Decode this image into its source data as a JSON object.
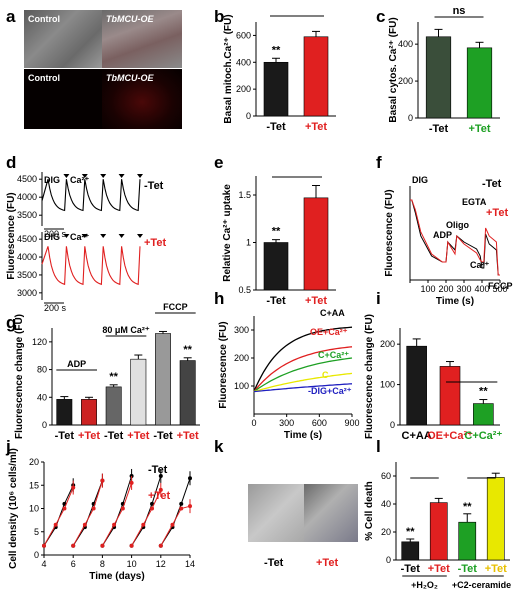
{
  "panel_letters": [
    "a",
    "b",
    "c",
    "d",
    "e",
    "f",
    "g",
    "h",
    "i",
    "j",
    "k",
    "l"
  ],
  "panel_a": {
    "labels": [
      "Control",
      "TbMCU-OE",
      "Control",
      "TbMCU-OE"
    ]
  },
  "panel_k": {
    "labels": [
      "-Tet",
      "+Tet"
    ]
  },
  "chart_data": [
    {
      "panel": "b",
      "type": "bar",
      "categories": [
        "-Tet",
        "+Tet"
      ],
      "values": [
        400,
        590
      ],
      "errors": [
        30,
        40
      ],
      "colors": [
        "#1a1a1a",
        "#e02020"
      ],
      "ylabel": "Basal mitoch.Ca²⁺ (FU)",
      "ylim": [
        0,
        700
      ],
      "yticks": [
        0,
        200,
        400,
        600
      ],
      "annotations": [
        "**"
      ]
    },
    {
      "panel": "c",
      "type": "bar",
      "categories": [
        "-Tet",
        "+Tet"
      ],
      "values": [
        440,
        380
      ],
      "errors": [
        40,
        30
      ],
      "colors": [
        "#3a4e3a",
        "#1ea024"
      ],
      "ylabel": "Basal cytos. Ca²⁺ (FU)",
      "ylim": [
        0,
        520
      ],
      "yticks": [
        0,
        200,
        400
      ],
      "annotations": [
        "ns"
      ]
    },
    {
      "panel": "d",
      "type": "line",
      "ylabel": "Fluorescence (FU)",
      "traces": [
        {
          "name": "-Tet",
          "color": "#000",
          "ylim": [
            3200,
            4700
          ],
          "yticks": [
            3500,
            4000,
            4500
          ],
          "scale_label": "200 s",
          "labels": [
            "DIG",
            "Ca²⁺"
          ]
        },
        {
          "name": "+Tet",
          "color": "#e02020",
          "ylim": [
            2800,
            4700
          ],
          "yticks": [
            3000,
            3500,
            4000,
            4500
          ],
          "scale_label": "200 s",
          "labels": [
            "DIG",
            "Ca²⁺"
          ]
        }
      ]
    },
    {
      "panel": "e",
      "type": "bar",
      "categories": [
        "-Tet",
        "+Tet"
      ],
      "values": [
        1.0,
        1.47
      ],
      "errors": [
        0.03,
        0.13
      ],
      "colors": [
        "#1a1a1a",
        "#e02020"
      ],
      "ylabel": "Relative Ca²⁺ uptake",
      "ylim": [
        0.5,
        1.7
      ],
      "yticks": [
        0.5,
        1.0,
        1.5
      ],
      "annotations": [
        "**"
      ]
    },
    {
      "panel": "f",
      "type": "line",
      "xlabel": "Time (s)",
      "ylabel": "Fluorescence (FU)",
      "xlim": [
        0,
        500
      ],
      "xticks": [
        0,
        100,
        200,
        300,
        400,
        500
      ],
      "series": [
        {
          "name": "-Tet",
          "color": "#000"
        },
        {
          "name": "+Tet",
          "color": "#e02020"
        }
      ],
      "annotations": [
        "DIG",
        "ADP",
        "Oligo",
        "EGTA",
        "Ca²⁺",
        "FCCP"
      ]
    },
    {
      "panel": "g",
      "type": "bar",
      "categories": [
        "-Tet",
        "+Tet",
        "-Tet",
        "+Tet",
        "-Tet",
        "+Tet"
      ],
      "values": [
        37,
        37,
        55,
        95,
        132,
        93
      ],
      "errors": [
        4,
        3,
        3,
        6,
        3,
        4
      ],
      "colors": [
        "#1a1a1a",
        "#cc2222",
        "#666",
        "#e0e0e0",
        "#999",
        "#444"
      ],
      "ylabel": "Fluorescence change (FU)",
      "ylim": [
        0,
        140
      ],
      "yticks": [
        0,
        40,
        80,
        120
      ],
      "groups": [
        "ADP",
        "80 μM Ca²⁺",
        "FCCP"
      ],
      "annotations": [
        "**",
        "**"
      ]
    },
    {
      "panel": "h",
      "type": "line",
      "xlabel": "Time (s)",
      "ylabel": "Fluorescence (FU)",
      "xlim": [
        0,
        900
      ],
      "xticks": [
        0,
        300,
        600,
        900
      ],
      "ylim": [
        0,
        350
      ],
      "yticks": [
        100,
        200,
        300
      ],
      "series": [
        {
          "name": "C+AA",
          "color": "#000"
        },
        {
          "name": "OE+Ca²⁺",
          "color": "#e02020"
        },
        {
          "name": "C+Ca²⁺",
          "color": "#1ea024"
        },
        {
          "name": "C",
          "color": "#e8e800"
        },
        {
          "name": "-DIG+Ca²⁺",
          "color": "#2020c0"
        }
      ]
    },
    {
      "panel": "i",
      "type": "bar",
      "categories": [
        "C+AA",
        "OE+Ca²⁺",
        "C+Ca²⁺"
      ],
      "values": [
        195,
        145,
        53
      ],
      "errors": [
        18,
        12,
        10
      ],
      "colors": [
        "#1a1a1a",
        "#e02020",
        "#1ea024"
      ],
      "ylabel": "Fluorescence change (FU)",
      "ylim": [
        0,
        240
      ],
      "yticks": [
        0,
        100,
        200
      ],
      "annotations": [
        "**"
      ]
    },
    {
      "panel": "j",
      "type": "line",
      "xlabel": "Time (days)",
      "ylabel": "Cell density (10⁶ cells/ml)",
      "xlim": [
        4,
        14
      ],
      "xticks": [
        4,
        6,
        8,
        10,
        12,
        14
      ],
      "ylim": [
        0,
        20
      ],
      "yticks": [
        0,
        5,
        10,
        15,
        20
      ],
      "series": [
        {
          "name": "-Tet",
          "color": "#000"
        },
        {
          "name": "+Tet",
          "color": "#e02020"
        }
      ]
    },
    {
      "panel": "l",
      "type": "bar",
      "categories": [
        "-Tet",
        "+Tet",
        "-Tet",
        "+Tet"
      ],
      "values": [
        13,
        41,
        27,
        59
      ],
      "errors": [
        2,
        3,
        6,
        3
      ],
      "colors": [
        "#1a1a1a",
        "#e02020",
        "#1ea024",
        "#e8e800"
      ],
      "ylabel": "% Cell death",
      "ylim": [
        0,
        70
      ],
      "yticks": [
        0,
        20,
        40,
        60
      ],
      "groups": [
        "+H₂O₂",
        "+C2-ceramide"
      ],
      "annotations": [
        "**",
        "**"
      ]
    }
  ]
}
